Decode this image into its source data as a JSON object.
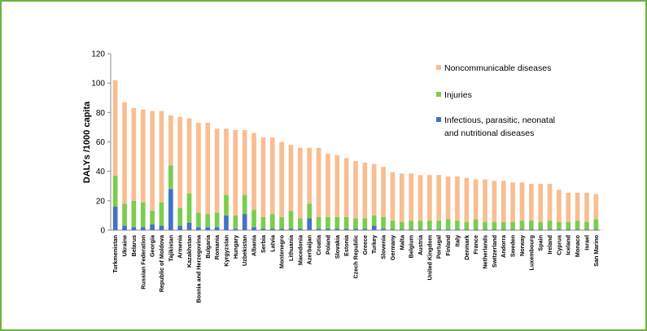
{
  "chart_data": {
    "type": "bar",
    "stacked": true,
    "title": "",
    "xlabel": "",
    "ylabel": "DALYs /1000 capita",
    "ylim": [
      0,
      120
    ],
    "yticks": [
      0,
      20,
      40,
      60,
      80,
      100,
      120
    ],
    "grid": false,
    "legend_position": "right",
    "categories": [
      "Turkmenistan",
      "Ukraine",
      "Belarus",
      "Russian Federation",
      "Georgia",
      "Republic of Moldova",
      "Tajikistan",
      "Armenia",
      "Kazakhstan",
      "Bosnia and Herzegovina",
      "Bulgaria",
      "Romania",
      "Kyrgyzstan",
      "Hungary",
      "Uzbekistan",
      "Albania",
      "Serbia",
      "Latvia",
      "Montenegro",
      "Lithuania",
      "Macedonia",
      "Azerbaijan",
      "Croatia",
      "Poland",
      "Slovakia",
      "Estonia",
      "Czech Republic",
      "Greece",
      "Turkey",
      "Slovenia",
      "Germany",
      "Malta",
      "Belgium",
      "Austria",
      "United Kingdom",
      "Portugal",
      "Finland",
      "Italy",
      "Denmark",
      "France",
      "Netherlands",
      "Switzerland",
      "Andorra",
      "Sweden",
      "Norway",
      "Luxembourg",
      "Spain",
      "Ireland",
      "Cyprus",
      "Iceland",
      "Monaco",
      "Israel",
      "San Marino"
    ],
    "series": [
      {
        "name": "Infectious, parasitic, neonatal and nutritional diseases",
        "color": "#4472c4",
        "values": [
          16,
          3,
          2,
          2,
          4,
          3,
          28,
          3,
          5,
          2,
          2,
          2,
          10,
          1,
          11,
          2,
          1,
          1,
          1,
          1,
          1,
          8,
          1,
          1,
          1,
          1,
          1,
          1,
          3,
          1,
          0.5,
          0.5,
          0.5,
          0.5,
          0.5,
          0.5,
          0.5,
          0.5,
          0.5,
          0.5,
          0.5,
          0.5,
          0.5,
          0.5,
          0.5,
          0.5,
          0.5,
          0.5,
          0.5,
          0.5,
          0.5,
          0.5,
          0.5
        ]
      },
      {
        "name": "Injuries",
        "color": "#7ccc4d",
        "values": [
          21,
          15,
          18,
          17,
          9,
          16,
          16,
          12,
          20,
          10,
          9,
          10,
          14,
          9,
          13,
          12,
          8,
          10,
          8,
          12,
          7,
          10,
          8,
          8,
          8,
          8,
          7,
          7,
          7,
          8,
          6,
          5,
          6,
          6,
          6,
          6,
          7,
          6,
          5,
          7,
          5,
          5,
          5,
          5,
          6,
          6,
          5,
          6,
          5,
          5,
          6,
          5,
          7
        ]
      },
      {
        "name": "Noncommunicable diseases",
        "color": "#f9be90",
        "values": [
          65,
          69,
          63,
          63,
          68,
          62,
          34,
          62,
          51,
          61,
          62,
          57,
          45,
          58,
          44,
          52,
          54,
          52,
          51,
          45,
          48,
          38,
          47,
          43,
          42,
          40,
          39,
          38,
          35,
          34,
          33,
          33,
          32,
          31,
          31,
          31,
          29,
          30,
          30,
          27,
          29,
          28,
          28,
          27,
          26,
          25,
          26,
          25,
          22,
          20,
          19,
          20,
          17
        ]
      }
    ],
    "legend": [
      {
        "label": "Noncommunicable diseases",
        "color": "#f9be90"
      },
      {
        "label": "Injuries",
        "color": "#7ccc4d"
      },
      {
        "label": "Infectious, parasitic, neonatal and nutritional diseases",
        "color": "#4472c4"
      }
    ],
    "legend_lines": {
      "infectious_line1": "Infectious, parasitic, neonatal",
      "infectious_line2": "and nutritional diseases"
    }
  }
}
